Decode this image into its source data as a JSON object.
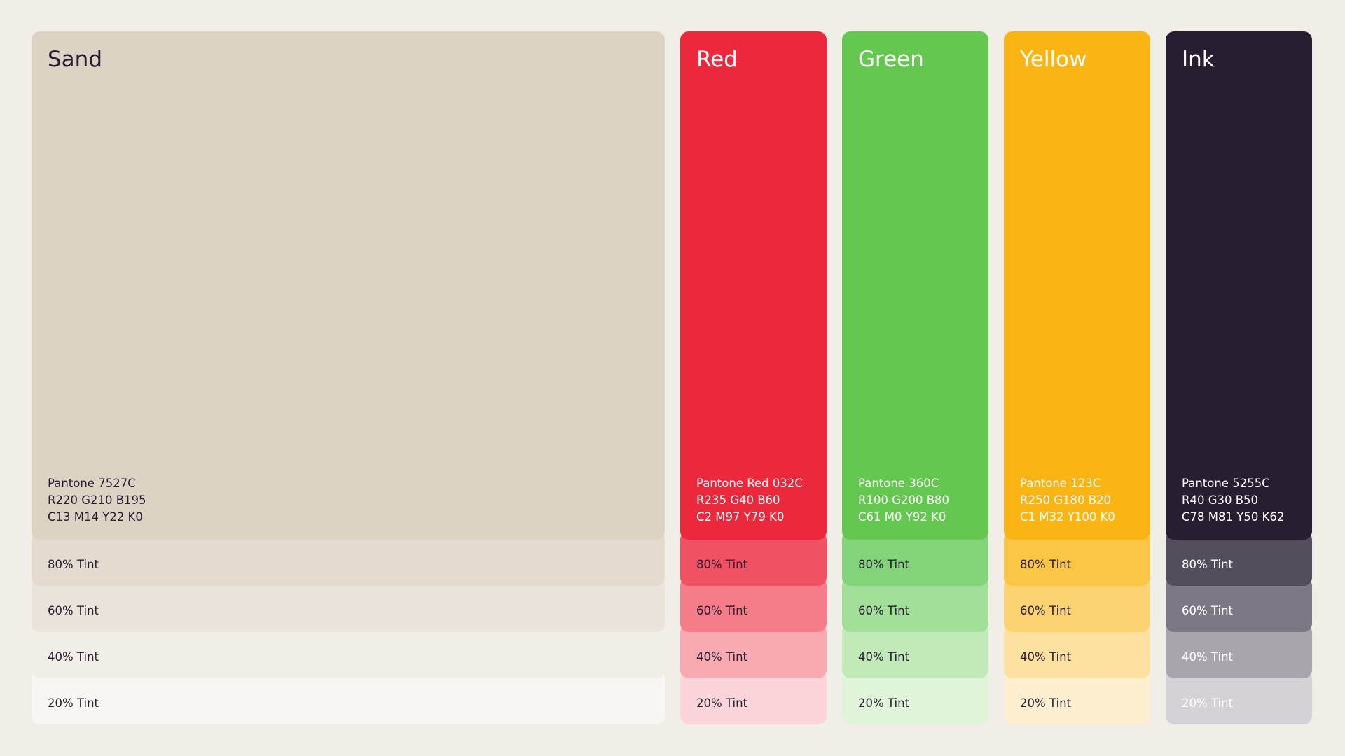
{
  "swatches": [
    {
      "name": "Sand",
      "color": "#dcd3c4",
      "pantone": "Pantone 7527C",
      "rgb": "R220 G210 B195",
      "cmyk": "C13 M14 Y22 K0",
      "tints": [
        {
          "label": "80% Tint",
          "color": "#e3dbcf"
        },
        {
          "label": "60% Tint",
          "color": "#ebe4db"
        },
        {
          "label": "40% Tint",
          "color": "#f1eee8"
        },
        {
          "label": "20% Tint",
          "color": "#f7f6f2"
        }
      ]
    },
    {
      "name": "Red",
      "color": "#eb283c",
      "pantone": "Pantone Red 032C",
      "rgb": "R235 G40 B60",
      "cmyk": "C2 M97 Y79 K0",
      "tints": [
        {
          "label": "80% Tint",
          "color": "#f05263"
        },
        {
          "label": "60% Tint",
          "color": "#f57d8a"
        },
        {
          "label": "40% Tint",
          "color": "#f7aab1"
        },
        {
          "label": "20% Tint",
          "color": "#fbd5d9"
        }
      ]
    },
    {
      "name": "Green",
      "color": "#64c850",
      "pantone": "Pantone 360C",
      "rgb": "R100 G200 B80",
      "cmyk": "C61 M0 Y92 K0",
      "tints": [
        {
          "label": "80% Tint",
          "color": "#83d37a"
        },
        {
          "label": "60% Tint",
          "color": "#a2df99"
        },
        {
          "label": "40% Tint",
          "color": "#c2eab9"
        },
        {
          "label": "20% Tint",
          "color": "#e0f4da"
        }
      ]
    },
    {
      "name": "Yellow",
      "color": "#fab414",
      "pantone": "Pantone 123C",
      "rgb": "R250 G180 B20",
      "cmyk": "C1 M32 Y100 K0",
      "tints": [
        {
          "label": "80% Tint",
          "color": "#fbc545"
        },
        {
          "label": "60% Tint",
          "color": "#fcd373"
        },
        {
          "label": "40% Tint",
          "color": "#fde1a0"
        },
        {
          "label": "20% Tint",
          "color": "#feefd0"
        }
      ]
    },
    {
      "name": "Ink",
      "color": "#281e32",
      "pantone": "Pantone 5255C",
      "rgb": "R40 G30 B50",
      "cmyk": "C78 M81 Y50 K62",
      "tints": [
        {
          "label": "80% Tint",
          "color": "#534d5c"
        },
        {
          "label": "60% Tint",
          "color": "#7e7885"
        },
        {
          "label": "40% Tint",
          "color": "#a9a5ad"
        },
        {
          "label": "20% Tint",
          "color": "#d4d2d7"
        }
      ]
    }
  ]
}
